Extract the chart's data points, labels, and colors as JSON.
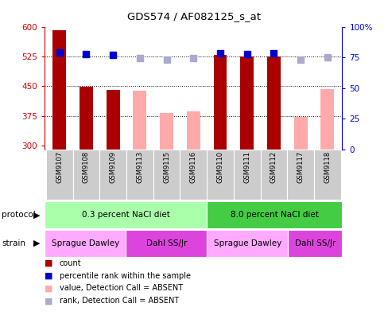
{
  "title": "GDS574 / AF082125_s_at",
  "samples": [
    "GSM9107",
    "GSM9108",
    "GSM9109",
    "GSM9113",
    "GSM9115",
    "GSM9116",
    "GSM9110",
    "GSM9111",
    "GSM9112",
    "GSM9117",
    "GSM9118"
  ],
  "bar_values": [
    592,
    449,
    440,
    null,
    null,
    null,
    530,
    525,
    525,
    null,
    null
  ],
  "bar_absent": [
    null,
    null,
    null,
    438,
    382,
    387,
    null,
    null,
    null,
    373,
    443
  ],
  "rank_present": [
    535,
    532,
    530,
    null,
    null,
    null,
    533,
    532,
    533,
    null,
    null
  ],
  "rank_absent": [
    null,
    null,
    null,
    522,
    517,
    522,
    null,
    null,
    null,
    518,
    523
  ],
  "ylim_left": [
    290,
    600
  ],
  "ylim_right": [
    0,
    100
  ],
  "yticks_left": [
    300,
    375,
    450,
    525,
    600
  ],
  "yticks_right": [
    0,
    25,
    50,
    75,
    100
  ],
  "bar_color_present": "#aa0000",
  "bar_color_absent": "#ffaaaa",
  "dot_color_present": "#0000cc",
  "dot_color_absent": "#aaaacc",
  "protocol_groups": [
    {
      "label": "0.3 percent NaCl diet",
      "start": 0,
      "end": 6,
      "color": "#aaffaa"
    },
    {
      "label": "8.0 percent NaCl diet",
      "start": 6,
      "end": 11,
      "color": "#44cc44"
    }
  ],
  "strain_groups": [
    {
      "label": "Sprague Dawley",
      "start": 0,
      "end": 3,
      "color": "#ffaaff"
    },
    {
      "label": "Dahl SS/Jr",
      "start": 3,
      "end": 6,
      "color": "#dd44dd"
    },
    {
      "label": "Sprague Dawley",
      "start": 6,
      "end": 9,
      "color": "#ffaaff"
    },
    {
      "label": "Dahl SS/Jr",
      "start": 9,
      "end": 11,
      "color": "#dd44dd"
    }
  ],
  "protocol_label": "protocol",
  "strain_label": "strain",
  "legend_items": [
    {
      "label": "count",
      "color": "#aa0000"
    },
    {
      "label": "percentile rank within the sample",
      "color": "#0000cc"
    },
    {
      "label": "value, Detection Call = ABSENT",
      "color": "#ffaaaa"
    },
    {
      "label": "rank, Detection Call = ABSENT",
      "color": "#aaaacc"
    }
  ],
  "bar_width": 0.5,
  "dot_size": 40,
  "background_color": "#ffffff",
  "label_color_left": "#cc0000",
  "label_color_right": "#0000cc",
  "tick_label_bg": "#cccccc"
}
